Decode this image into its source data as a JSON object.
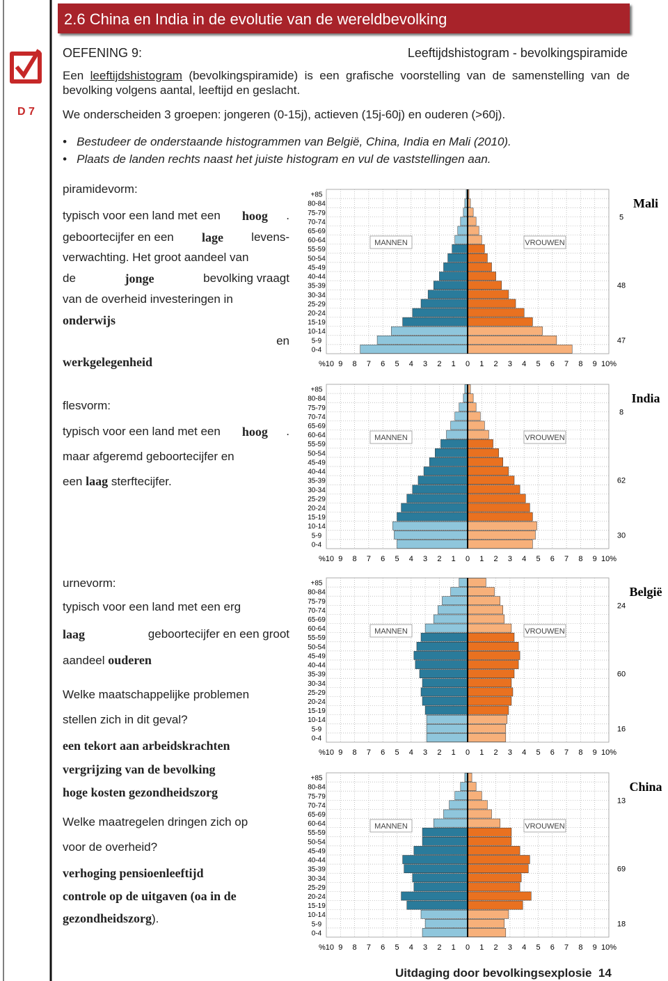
{
  "header": {
    "title": "2.6 China en India in de evolutie van de wereldbevolking",
    "side_label": "D 7"
  },
  "exercise": {
    "label": "OEFENING 9:",
    "subtitle": "Leeftijdshistogram - bevolkingspiramide"
  },
  "intro": {
    "before": "Een ",
    "term": "leeftijdshistogram",
    "after": " (bevolkingspiramide) is een grafische voorstelling van de samenstelling van de bevolking volgens aantal, leeftijd en geslacht.",
    "groups": "We onderscheiden 3 groepen: jongeren (0-15j), actieven (15j-60j) en ouderen (>60j).",
    "bullets": [
      "Bestudeer de onderstaande histogrammen van België, China, India en Mali (2010).",
      "Plaats de landen rechts naast het juiste histogram en vul de vaststellingen aan."
    ]
  },
  "sections": [
    {
      "heading": "piramidevorm:",
      "lines": [
        [
          "typisch voor een land met een ",
          {
            "answer": "hoog"
          },
          "."
        ],
        [
          "geboortecijfer en een ",
          {
            "answer": "lage"
          },
          " levens-"
        ],
        [
          "verwachting. Het groot aandeel van"
        ],
        [
          "de ",
          {
            "answer": "jonge"
          },
          " bevolking vraagt"
        ],
        [
          "van de overheid investeringen in"
        ],
        [
          {
            "answer": "onderwijs"
          }
        ],
        [
          "en"
        ],
        [
          {
            "answer": "werkgelegenheid"
          }
        ]
      ]
    },
    {
      "heading": "flesvorm:",
      "lines": [
        [
          "typisch voor een land met een ",
          {
            "answer": "hoog"
          },
          "."
        ],
        [
          "maar afgeremd geboortecijfer en"
        ],
        [
          "een ",
          {
            "answer": "laag"
          },
          " sterftecijfer."
        ]
      ]
    },
    {
      "heading": "urnevorm:",
      "lines": [
        [
          "typisch voor een land met een erg"
        ],
        [
          {
            "answer": "laag"
          },
          " geboortecijfer en een groot"
        ],
        [
          "aandeel ",
          {
            "answer": "ouderen"
          }
        ],
        [
          "Welke maatschappelijke problemen"
        ],
        [
          "stellen zich in dit geval?"
        ],
        [
          {
            "answer": "een tekort aan arbeidskrachten"
          }
        ],
        [
          {
            "answer": "vergrijzing van de bevolking"
          }
        ],
        [
          {
            "answer": "hoge kosten gezondheidszorg"
          }
        ],
        [
          "Welke maatregelen dringen zich op"
        ],
        [
          "voor de overheid?"
        ],
        [
          {
            "answer": "verhoging pensioenleeftijd"
          }
        ],
        [
          {
            "answer": "controle op de uitgaven (oa in de"
          }
        ],
        [
          {
            "answer": "gezondheidszorg"
          },
          ")."
        ]
      ]
    }
  ],
  "footer": {
    "text": "Uitdaging door bevolkingsexplosie",
    "page": "14"
  },
  "chart_data": [
    {
      "type": "pyramid",
      "country": "Mali",
      "categories": [
        "+85",
        "80-84",
        "75-79",
        "70-74",
        "65-69",
        "60-64",
        "55-59",
        "50-54",
        "45-49",
        "40-44",
        "35-39",
        "30-34",
        "25-29",
        "20-24",
        "15-19",
        "10-14",
        "5-9",
        "0-4"
      ],
      "series": [
        {
          "name": "MANNEN",
          "color": "#2a7b9b",
          "light_color": "#8fc6dc",
          "values": [
            0.1,
            0.2,
            0.3,
            0.5,
            0.7,
            0.9,
            1.1,
            1.4,
            1.7,
            2.0,
            2.4,
            2.8,
            3.3,
            3.9,
            4.6,
            5.4,
            6.4,
            7.6
          ]
        },
        {
          "name": "VROUWEN",
          "color": "#e97120",
          "light_color": "#f7b07a",
          "values": [
            0.1,
            0.2,
            0.4,
            0.6,
            0.8,
            1.0,
            1.2,
            1.4,
            1.7,
            2.0,
            2.4,
            2.9,
            3.4,
            4.0,
            4.6,
            5.3,
            6.3,
            7.4
          ]
        }
      ],
      "group_shares": [
        5,
        48,
        47
      ],
      "xlim": [
        -10,
        10
      ],
      "xticks": [
        {
          "value": -10,
          "label": "%10"
        },
        {
          "value": -9,
          "label": "9"
        },
        {
          "value": -8,
          "label": "8"
        },
        {
          "value": -7,
          "label": "7"
        },
        {
          "value": -6,
          "label": "6"
        },
        {
          "value": -5,
          "label": "5"
        },
        {
          "value": -4,
          "label": "4"
        },
        {
          "value": -3,
          "label": "3"
        },
        {
          "value": -2,
          "label": "2"
        },
        {
          "value": -1,
          "label": "1"
        },
        0,
        1,
        2,
        3,
        4,
        5,
        6,
        7,
        8,
        9,
        {
          "value": 10,
          "label": "10%"
        }
      ],
      "grid": true
    },
    {
      "type": "pyramid",
      "country": "India",
      "categories": [
        "+85",
        "80-84",
        "75-79",
        "70-74",
        "65-69",
        "60-64",
        "55-59",
        "50-54",
        "45-49",
        "40-44",
        "35-39",
        "30-34",
        "25-29",
        "20-24",
        "15-19",
        "10-14",
        "5-9",
        "0-4"
      ],
      "series": [
        {
          "name": "MANNEN",
          "color": "#2a7b9b",
          "light_color": "#8fc6dc",
          "values": [
            0.2,
            0.3,
            0.6,
            0.9,
            1.2,
            1.5,
            1.9,
            2.3,
            2.7,
            3.1,
            3.5,
            3.9,
            4.3,
            4.7,
            5.0,
            5.3,
            5.2,
            5.0
          ]
        },
        {
          "name": "VROUWEN",
          "color": "#e97120",
          "light_color": "#f7b07a",
          "values": [
            0.2,
            0.4,
            0.6,
            0.9,
            1.2,
            1.5,
            1.8,
            2.2,
            2.5,
            2.9,
            3.3,
            3.7,
            4.1,
            4.4,
            4.6,
            4.9,
            4.8,
            4.6
          ]
        }
      ],
      "group_shares": [
        8,
        62,
        30
      ],
      "xlim": [
        -10,
        10
      ],
      "xticks": [
        {
          "value": -10,
          "label": "%10"
        },
        {
          "value": -9,
          "label": "9"
        },
        {
          "value": -8,
          "label": "8"
        },
        {
          "value": -7,
          "label": "7"
        },
        {
          "value": -6,
          "label": "6"
        },
        {
          "value": -5,
          "label": "5"
        },
        {
          "value": -4,
          "label": "4"
        },
        {
          "value": -3,
          "label": "3"
        },
        {
          "value": -2,
          "label": "2"
        },
        {
          "value": -1,
          "label": "1"
        },
        0,
        1,
        2,
        3,
        4,
        5,
        6,
        7,
        8,
        9,
        {
          "value": 10,
          "label": "10%"
        }
      ],
      "grid": true
    },
    {
      "type": "pyramid",
      "country": "België",
      "categories": [
        "+85",
        "80-84",
        "75-79",
        "70-74",
        "65-69",
        "60-64",
        "55-59",
        "50-54",
        "45-49",
        "40-44",
        "35-39",
        "30-34",
        "25-29",
        "20-24",
        "15-19",
        "10-14",
        "5-9",
        "0-4"
      ],
      "series": [
        {
          "name": "MANNEN",
          "color": "#2a7b9b",
          "light_color": "#8fc6dc",
          "values": [
            0.6,
            1.2,
            1.8,
            2.1,
            2.4,
            3.0,
            3.3,
            3.6,
            3.8,
            3.7,
            3.4,
            3.2,
            3.3,
            3.2,
            3.0,
            2.9,
            2.9,
            2.9
          ]
        },
        {
          "name": "VROUWEN",
          "color": "#e97120",
          "light_color": "#f7b07a",
          "values": [
            1.3,
            1.9,
            2.3,
            2.5,
            2.6,
            3.1,
            3.3,
            3.6,
            3.7,
            3.6,
            3.3,
            3.1,
            3.2,
            3.1,
            2.9,
            2.8,
            2.7,
            2.7
          ]
        }
      ],
      "group_shares": [
        24,
        60,
        16
      ],
      "xlim": [
        -10,
        10
      ],
      "xticks": [
        {
          "value": -10,
          "label": "%10"
        },
        {
          "value": -9,
          "label": "9"
        },
        {
          "value": -8,
          "label": "8"
        },
        {
          "value": -7,
          "label": "7"
        },
        {
          "value": -6,
          "label": "6"
        },
        {
          "value": -5,
          "label": "5"
        },
        {
          "value": -4,
          "label": "4"
        },
        {
          "value": -3,
          "label": "3"
        },
        {
          "value": -2,
          "label": "2"
        },
        {
          "value": -1,
          "label": "1"
        },
        0,
        1,
        2,
        3,
        4,
        5,
        6,
        7,
        8,
        9,
        {
          "value": 10,
          "label": "10%"
        }
      ],
      "grid": true
    },
    {
      "type": "pyramid",
      "country": "China",
      "categories": [
        "+85",
        "80-84",
        "75-79",
        "70-74",
        "65-69",
        "60-64",
        "55-59",
        "50-54",
        "45-49",
        "40-44",
        "35-39",
        "30-34",
        "25-29",
        "20-24",
        "15-19",
        "10-14",
        "5-9",
        "0-4"
      ],
      "series": [
        {
          "name": "MANNEN",
          "color": "#2a7b9b",
          "light_color": "#8fc6dc",
          "values": [
            0.2,
            0.5,
            0.9,
            1.3,
            1.7,
            2.4,
            3.2,
            3.2,
            3.8,
            4.6,
            4.5,
            3.9,
            3.8,
            4.7,
            4.3,
            3.3,
            3.0,
            3.2
          ]
        },
        {
          "name": "VROUWEN",
          "color": "#e97120",
          "light_color": "#f7b07a",
          "values": [
            0.3,
            0.6,
            1.0,
            1.4,
            1.7,
            2.3,
            3.1,
            3.1,
            3.7,
            4.4,
            4.3,
            3.8,
            3.7,
            4.5,
            3.9,
            2.9,
            2.6,
            2.7
          ]
        }
      ],
      "group_shares": [
        13,
        69,
        18
      ],
      "xlim": [
        -10,
        10
      ],
      "xticks": [
        {
          "value": -10,
          "label": "%10"
        },
        {
          "value": -9,
          "label": "9"
        },
        {
          "value": -8,
          "label": "8"
        },
        {
          "value": -7,
          "label": "7"
        },
        {
          "value": -6,
          "label": "6"
        },
        {
          "value": -5,
          "label": "5"
        },
        {
          "value": -4,
          "label": "4"
        },
        {
          "value": -3,
          "label": "3"
        },
        {
          "value": -2,
          "label": "2"
        },
        {
          "value": -1,
          "label": "1"
        },
        0,
        1,
        2,
        3,
        4,
        5,
        6,
        7,
        8,
        9,
        {
          "value": 10,
          "label": "10%"
        }
      ],
      "grid": true
    }
  ]
}
